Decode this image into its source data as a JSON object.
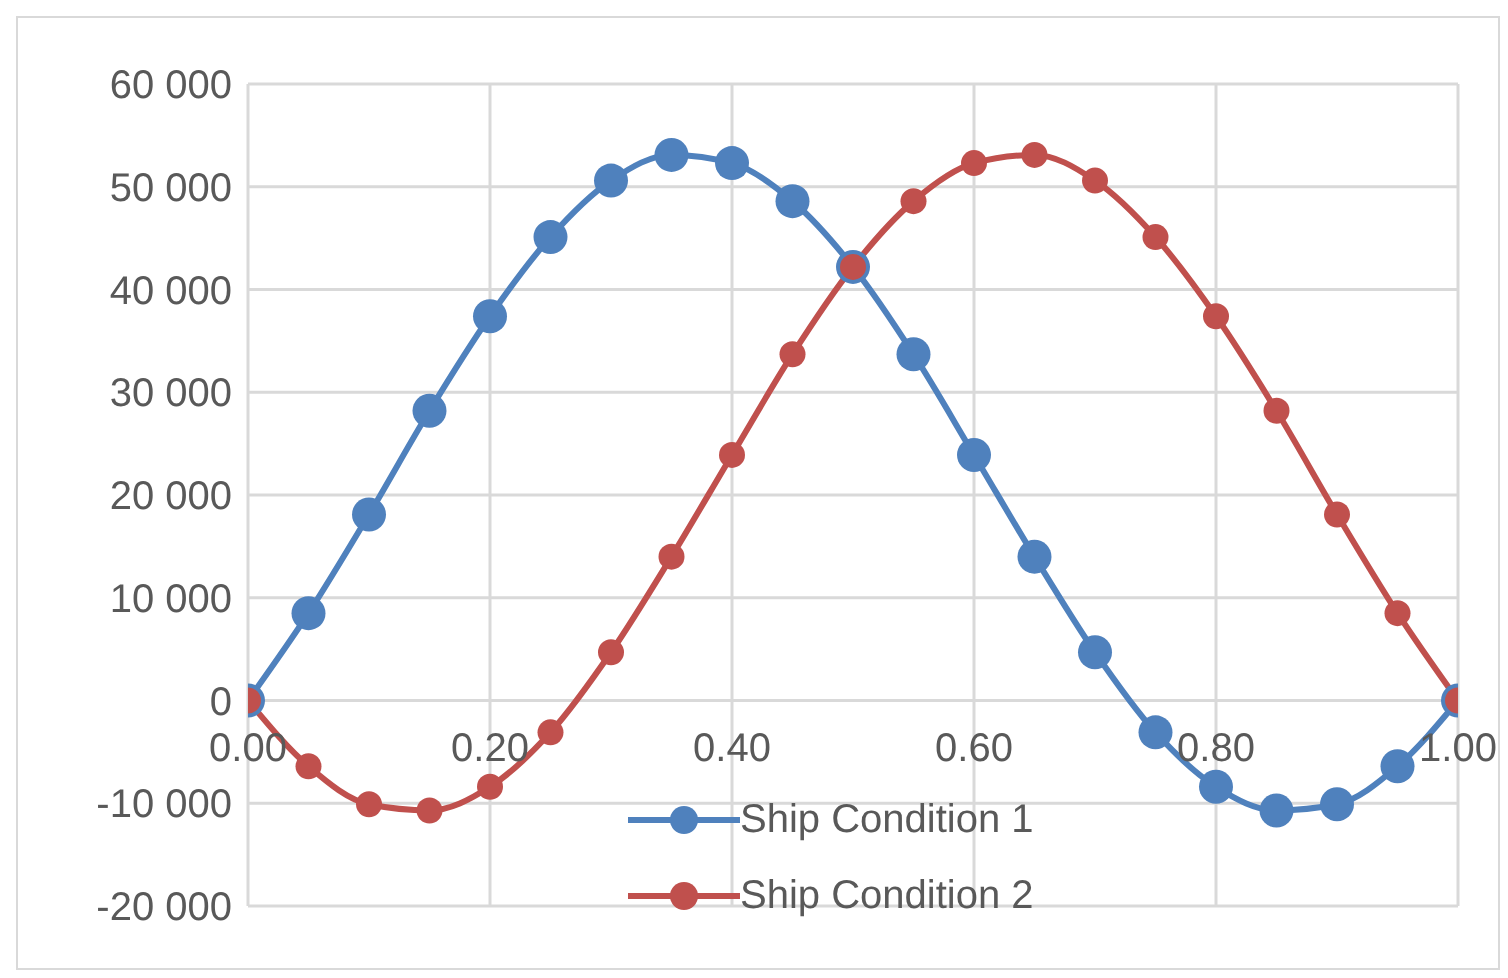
{
  "chart_data": {
    "type": "line",
    "x": [
      0,
      0.05,
      0.1,
      0.15,
      0.2,
      0.25,
      0.3,
      0.35,
      0.4,
      0.45,
      0.5,
      0.55,
      0.6,
      0.65,
      0.7,
      0.75,
      0.8,
      0.85,
      0.9,
      0.95,
      1
    ],
    "series": [
      {
        "name": "Ship Condition 1",
        "color": "#4f81bd",
        "values": [
          0,
          8500,
          18100,
          28200,
          37400,
          45100,
          50600,
          53100,
          52300,
          48600,
          42200,
          33700,
          23900,
          14000,
          4700,
          -3100,
          -8400,
          -10700,
          -10100,
          -6400,
          0
        ]
      },
      {
        "name": "Ship Condition 2",
        "color": "#c0504d",
        "values": [
          0,
          -6400,
          -10100,
          -10700,
          -8400,
          -3100,
          4700,
          14000,
          23900,
          33700,
          42200,
          48600,
          52300,
          53100,
          50600,
          45100,
          37400,
          28200,
          18100,
          8500,
          0
        ]
      }
    ],
    "xlim": [
      0,
      1
    ],
    "xticks": [
      {
        "value": 0,
        "label": "0.00"
      },
      {
        "value": 0.2,
        "label": "0.20"
      },
      {
        "value": 0.4,
        "label": "0.40"
      },
      {
        "value": 0.6,
        "label": "0.60"
      },
      {
        "value": 0.8,
        "label": "0.80"
      },
      {
        "value": 1,
        "label": "1.00"
      }
    ],
    "ylim": [
      -20000,
      60000
    ],
    "yticks": [
      {
        "value": -20000,
        "label": "-20 000"
      },
      {
        "value": -10000,
        "label": "-10 000"
      },
      {
        "value": 0,
        "label": "0"
      },
      {
        "value": 10000,
        "label": "10 000"
      },
      {
        "value": 20000,
        "label": "20 000"
      },
      {
        "value": 30000,
        "label": "30 000"
      },
      {
        "value": 40000,
        "label": "40 000"
      },
      {
        "value": 50000,
        "label": "50 000"
      },
      {
        "value": 60000,
        "label": "60 000"
      }
    ],
    "grid": true,
    "legend": "bottom",
    "marker": "circle",
    "line_style": "solid"
  }
}
